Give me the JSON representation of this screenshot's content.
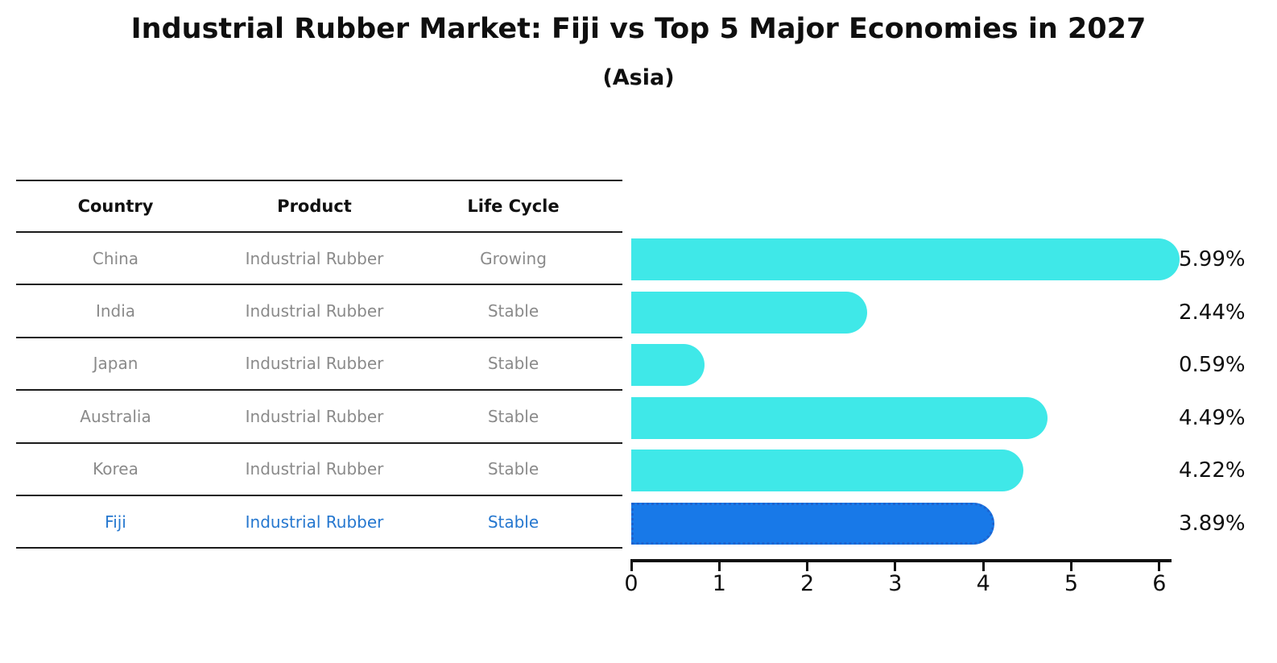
{
  "title": "Industrial Rubber Market: Fiji vs Top 5 Major Economies in 2027",
  "subtitle": "(Asia)",
  "table": {
    "headers": [
      "Country",
      "Product",
      "Life Cycle"
    ],
    "rows": [
      {
        "country": "China",
        "product": "Industrial Rubber",
        "life_cycle": "Growing"
      },
      {
        "country": "India",
        "product": "Industrial Rubber",
        "life_cycle": "Stable"
      },
      {
        "country": "Japan",
        "product": "Industrial Rubber",
        "life_cycle": "Stable"
      },
      {
        "country": "Australia",
        "product": "Industrial Rubber",
        "life_cycle": "Stable"
      },
      {
        "country": "Korea",
        "product": "Industrial Rubber",
        "life_cycle": "Stable"
      },
      {
        "country": "Fiji",
        "product": "Industrial Rubber",
        "life_cycle": "Stable"
      }
    ]
  },
  "chart_data": {
    "type": "bar",
    "orientation": "horizontal",
    "title": "Industrial Rubber Market: Fiji vs Top 5 Major Economies in 2027",
    "subtitle": "(Asia)",
    "categories": [
      "China",
      "India",
      "Japan",
      "Australia",
      "Korea",
      "Fiji"
    ],
    "values": [
      5.99,
      2.44,
      0.59,
      4.49,
      4.22,
      3.89
    ],
    "value_labels": [
      "5.99%",
      "2.44%",
      "0.59%",
      "4.49%",
      "4.22%",
      "3.89%"
    ],
    "x_ticks": [
      "0",
      "1",
      "2",
      "3",
      "4",
      "5",
      "6"
    ],
    "xlim": [
      0,
      6.2
    ],
    "grid": false,
    "legend": false,
    "bar_color": "#3FE8E8",
    "highlight": {
      "index": 5,
      "category": "Fiji",
      "fill": "#1879E8",
      "border": "#1E63CE",
      "border_style": "dotted"
    }
  },
  "colors": {
    "highlight_text": "#2577CF",
    "cell_text": "#8A8A8A",
    "header_text": "#111111",
    "line": "#1B1B1B",
    "text": "#0F0F0F"
  }
}
